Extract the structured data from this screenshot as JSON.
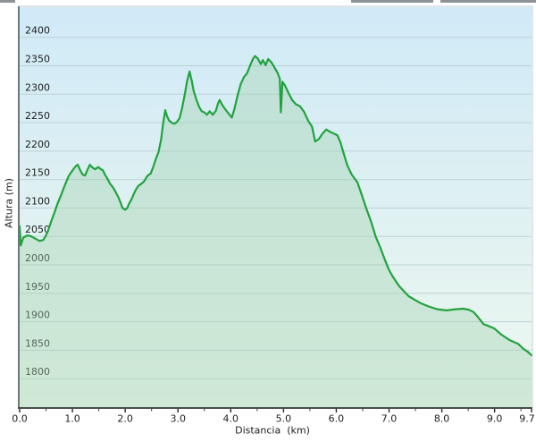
{
  "window": {
    "top_edge_fragments": [
      "left",
      "middle",
      "right"
    ]
  },
  "chart_data": {
    "type": "area",
    "title": "",
    "xlabel": "Distancia  (km)",
    "ylabel": "Altura (m)",
    "xlim": [
      0,
      9.7
    ],
    "ylim": [
      1750,
      2453
    ],
    "grid": true,
    "legend": "none",
    "x_major_ticks": [
      0,
      1,
      2,
      3,
      4,
      5,
      6,
      7,
      8,
      9,
      9.7
    ],
    "x_tick_labels": [
      "0.0",
      "1.0",
      "2.0",
      "3.0",
      "4.0",
      "5.0",
      "6.0",
      "7.0",
      "8.0",
      "9.0",
      "9.7"
    ],
    "x_minor_ticks": [
      0.5,
      1.5,
      2.5,
      3.5,
      4.5,
      5.5,
      6.5,
      7.5,
      8.5,
      9.5
    ],
    "y_ticks": [
      1800,
      1850,
      1900,
      1950,
      2000,
      2050,
      2100,
      2150,
      2200,
      2250,
      2300,
      2350,
      2400
    ],
    "colors": {
      "line": "#22a23e",
      "fill": "rgba(163,211,175,0.40)",
      "gridline": "#b6c9cf",
      "bg_top": "#d0eaf8",
      "bg_mid": "#ddf0f2",
      "bg_bottom": "#eef8f0",
      "axis_dark": "#2e3334",
      "axis_left": "#6f7779",
      "frame_light": "#c6ced1",
      "label": "#1d1d1d"
    },
    "series": [
      {
        "name": "elevation-profile",
        "points": [
          [
            0.0,
            2068
          ],
          [
            0.02,
            2034
          ],
          [
            0.07,
            2048
          ],
          [
            0.15,
            2052
          ],
          [
            0.22,
            2050
          ],
          [
            0.3,
            2046
          ],
          [
            0.38,
            2042
          ],
          [
            0.45,
            2044
          ],
          [
            0.5,
            2052
          ],
          [
            0.55,
            2063
          ],
          [
            0.6,
            2077
          ],
          [
            0.66,
            2092
          ],
          [
            0.72,
            2108
          ],
          [
            0.79,
            2124
          ],
          [
            0.86,
            2141
          ],
          [
            0.93,
            2156
          ],
          [
            1.0,
            2166
          ],
          [
            1.06,
            2173
          ],
          [
            1.1,
            2176
          ],
          [
            1.14,
            2168
          ],
          [
            1.19,
            2159
          ],
          [
            1.24,
            2157
          ],
          [
            1.29,
            2168
          ],
          [
            1.33,
            2176
          ],
          [
            1.38,
            2171
          ],
          [
            1.43,
            2168
          ],
          [
            1.49,
            2172
          ],
          [
            1.54,
            2168
          ],
          [
            1.58,
            2166
          ],
          [
            1.62,
            2158
          ],
          [
            1.66,
            2152
          ],
          [
            1.71,
            2143
          ],
          [
            1.77,
            2136
          ],
          [
            1.82,
            2128
          ],
          [
            1.87,
            2119
          ],
          [
            1.91,
            2110
          ],
          [
            1.95,
            2100
          ],
          [
            2.0,
            2097
          ],
          [
            2.04,
            2100
          ],
          [
            2.07,
            2107
          ],
          [
            2.12,
            2115
          ],
          [
            2.16,
            2124
          ],
          [
            2.2,
            2132
          ],
          [
            2.25,
            2139
          ],
          [
            2.3,
            2142
          ],
          [
            2.36,
            2147
          ],
          [
            2.41,
            2155
          ],
          [
            2.44,
            2158
          ],
          [
            2.48,
            2160
          ],
          [
            2.53,
            2172
          ],
          [
            2.58,
            2186
          ],
          [
            2.63,
            2198
          ],
          [
            2.68,
            2220
          ],
          [
            2.72,
            2250
          ],
          [
            2.76,
            2272
          ],
          [
            2.79,
            2262
          ],
          [
            2.83,
            2254
          ],
          [
            2.88,
            2250
          ],
          [
            2.93,
            2248
          ],
          [
            2.98,
            2251
          ],
          [
            3.03,
            2258
          ],
          [
            3.08,
            2276
          ],
          [
            3.13,
            2300
          ],
          [
            3.17,
            2322
          ],
          [
            3.22,
            2340
          ],
          [
            3.26,
            2324
          ],
          [
            3.3,
            2305
          ],
          [
            3.35,
            2290
          ],
          [
            3.4,
            2278
          ],
          [
            3.45,
            2270
          ],
          [
            3.5,
            2268
          ],
          [
            3.55,
            2264
          ],
          [
            3.6,
            2270
          ],
          [
            3.66,
            2264
          ],
          [
            3.72,
            2271
          ],
          [
            3.76,
            2284
          ],
          [
            3.79,
            2290
          ],
          [
            3.84,
            2281
          ],
          [
            3.9,
            2273
          ],
          [
            3.96,
            2266
          ],
          [
            4.02,
            2259
          ],
          [
            4.07,
            2274
          ],
          [
            4.13,
            2298
          ],
          [
            4.19,
            2318
          ],
          [
            4.25,
            2330
          ],
          [
            4.31,
            2337
          ],
          [
            4.37,
            2351
          ],
          [
            4.42,
            2362
          ],
          [
            4.46,
            2367
          ],
          [
            4.51,
            2363
          ],
          [
            4.57,
            2353
          ],
          [
            4.61,
            2360
          ],
          [
            4.66,
            2351
          ],
          [
            4.71,
            2362
          ],
          [
            4.77,
            2356
          ],
          [
            4.83,
            2347
          ],
          [
            4.89,
            2337
          ],
          [
            4.93,
            2327
          ],
          [
            4.95,
            2268
          ],
          [
            4.98,
            2322
          ],
          [
            5.03,
            2315
          ],
          [
            5.1,
            2301
          ],
          [
            5.17,
            2289
          ],
          [
            5.24,
            2282
          ],
          [
            5.31,
            2279
          ],
          [
            5.39,
            2269
          ],
          [
            5.47,
            2253
          ],
          [
            5.54,
            2243
          ],
          [
            5.6,
            2217
          ],
          [
            5.67,
            2221
          ],
          [
            5.74,
            2231
          ],
          [
            5.81,
            2238
          ],
          [
            5.88,
            2234
          ],
          [
            5.95,
            2231
          ],
          [
            6.02,
            2228
          ],
          [
            6.08,
            2215
          ],
          [
            6.14,
            2196
          ],
          [
            6.21,
            2175
          ],
          [
            6.29,
            2159
          ],
          [
            6.4,
            2145
          ],
          [
            6.49,
            2121
          ],
          [
            6.57,
            2099
          ],
          [
            6.66,
            2076
          ],
          [
            6.75,
            2049
          ],
          [
            6.84,
            2029
          ],
          [
            6.92,
            2009
          ],
          [
            7.0,
            1991
          ],
          [
            7.08,
            1978
          ],
          [
            7.19,
            1963
          ],
          [
            7.3,
            1952
          ],
          [
            7.37,
            1945
          ],
          [
            7.46,
            1940
          ],
          [
            7.59,
            1933
          ],
          [
            7.75,
            1927
          ],
          [
            7.91,
            1922
          ],
          [
            8.09,
            1920
          ],
          [
            8.26,
            1922
          ],
          [
            8.41,
            1923
          ],
          [
            8.52,
            1921
          ],
          [
            8.6,
            1917
          ],
          [
            8.66,
            1911
          ],
          [
            8.72,
            1904
          ],
          [
            8.79,
            1896
          ],
          [
            8.9,
            1892
          ],
          [
            9.0,
            1888
          ],
          [
            9.12,
            1878
          ],
          [
            9.28,
            1868
          ],
          [
            9.45,
            1861
          ],
          [
            9.54,
            1853
          ],
          [
            9.63,
            1847
          ],
          [
            9.7,
            1841
          ]
        ]
      }
    ]
  }
}
